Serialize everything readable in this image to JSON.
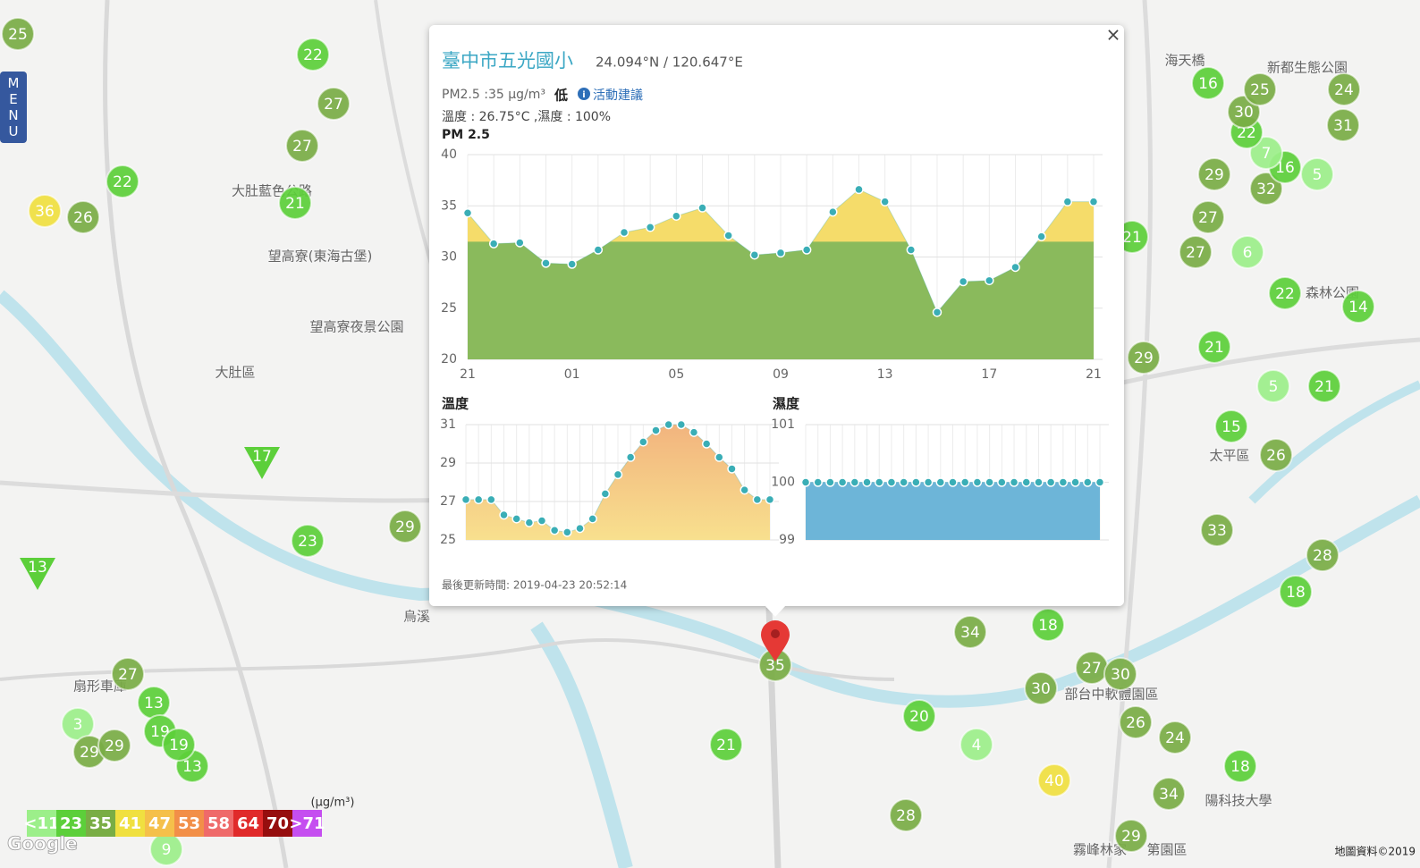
{
  "map": {
    "markers": [
      25,
      22,
      27,
      27,
      22,
      21,
      36,
      26,
      29,
      23,
      27,
      13,
      3,
      19,
      29,
      29,
      13,
      19,
      21,
      20,
      4,
      34,
      18,
      30,
      27,
      30,
      26,
      24,
      40,
      34,
      18,
      28,
      29,
      18,
      28,
      33,
      26,
      15,
      21,
      5,
      29,
      21,
      14,
      22,
      27,
      6,
      27,
      32,
      29,
      16,
      5,
      7,
      22,
      30,
      16,
      25,
      24,
      31,
      21,
      9,
      35
    ],
    "triangle_markers": [
      17,
      13
    ],
    "places": [
      "大肚區",
      "大肚藍色公路",
      "望高寮(東海古堡)",
      "望高寮夜景公園",
      "扇形車庫",
      "太平區",
      "新都生態公園",
      "海天橋",
      "森林公園",
      "烏溪",
      "部台中軟體園區",
      "陽科技大學",
      "霧峰林家",
      "第園區"
    ],
    "menu": "MENU",
    "attribution": "Google",
    "copyright": "地圖資料©2019"
  },
  "legend": {
    "unit": "(μg/m³)",
    "items": [
      {
        "label": "<11",
        "value": 11,
        "color": "#9cef8a"
      },
      {
        "label": "23",
        "value": 23,
        "color": "#5ccf3a"
      },
      {
        "label": "35",
        "value": 35,
        "color": "#79ad45"
      },
      {
        "label": "41",
        "value": 41,
        "color": "#f0e040"
      },
      {
        "label": "47",
        "value": 47,
        "color": "#f5c04a"
      },
      {
        "label": "53",
        "value": 53,
        "color": "#f28f48"
      },
      {
        "label": "58",
        "value": 58,
        "color": "#ef6a6a"
      },
      {
        "label": "64",
        "value": 64,
        "color": "#e02a2a"
      },
      {
        "label": "70",
        "value": 70,
        "color": "#960e0e"
      },
      {
        "label": ">71",
        "value": 71,
        "color": "#c54ef0"
      }
    ]
  },
  "popup": {
    "title": "臺中市五光國小",
    "coords": "24.094°N / 120.647°E",
    "pm25": "PM2.5 :35 μg/m³",
    "level": "低",
    "advice": "活動建議",
    "weather": "溫度 : 26.75°C ,濕度 : 100%",
    "updated": "最後更新時間: 2019-04-23 20:52:14",
    "close": "×"
  },
  "chart_data": [
    {
      "type": "area",
      "title": "PM 2.5",
      "categories": [
        "21",
        null,
        null,
        null,
        "01",
        null,
        null,
        null,
        "05",
        null,
        null,
        null,
        "09",
        null,
        null,
        null,
        "13",
        null,
        null,
        null,
        "17",
        null,
        null,
        null,
        "21"
      ],
      "values": [
        34.3,
        31.3,
        31.4,
        29.4,
        29.3,
        30.7,
        32.4,
        32.9,
        34.0,
        34.8,
        32.1,
        30.2,
        30.4,
        30.7,
        34.4,
        36.6,
        35.4,
        30.7,
        24.6,
        27.6,
        27.7,
        29.0,
        32.0,
        35.4,
        35.4
      ],
      "ylim": [
        20,
        40
      ],
      "yticks": [
        20,
        25,
        30,
        35,
        40
      ],
      "color": "#8aba5c",
      "threshold": 31.5,
      "threshold_color": "#f5dc6a",
      "marker_color": "#3aaeb6",
      "grid": true
    },
    {
      "type": "area",
      "title": "溫度",
      "categories": [
        null,
        null,
        null,
        null,
        null,
        null,
        null,
        null,
        null,
        null,
        null,
        null,
        null,
        null,
        null,
        null,
        null,
        null,
        null,
        null,
        null,
        null,
        null,
        null,
        null
      ],
      "values": [
        27.1,
        27.1,
        27.1,
        26.3,
        26.1,
        25.9,
        26.0,
        25.5,
        25.4,
        25.6,
        26.1,
        27.4,
        28.4,
        29.3,
        30.1,
        30.7,
        31.0,
        31.0,
        30.6,
        30.0,
        29.3,
        28.7,
        27.6,
        27.1,
        27.1
      ],
      "ylim": [
        25,
        31
      ],
      "yticks": [
        25,
        27,
        29,
        31
      ],
      "color": "#f2b47e",
      "color_bottom": "#f8e08e",
      "marker_color": "#3aaeb6",
      "grid": true
    },
    {
      "type": "area",
      "title": "濕度",
      "categories": [
        null,
        null,
        null,
        null,
        null,
        null,
        null,
        null,
        null,
        null,
        null,
        null,
        null,
        null,
        null,
        null,
        null,
        null,
        null,
        null,
        null,
        null,
        null,
        null,
        null
      ],
      "values": [
        100,
        100,
        100,
        100,
        100,
        100,
        100,
        100,
        100,
        100,
        100,
        100,
        100,
        100,
        100,
        100,
        100,
        100,
        100,
        100,
        100,
        100,
        100,
        100,
        100
      ],
      "ylim": [
        99,
        101
      ],
      "yticks": [
        99,
        100,
        101
      ],
      "color": "#6db5d8",
      "marker_color": "#3aaeb6",
      "grid": true
    }
  ]
}
